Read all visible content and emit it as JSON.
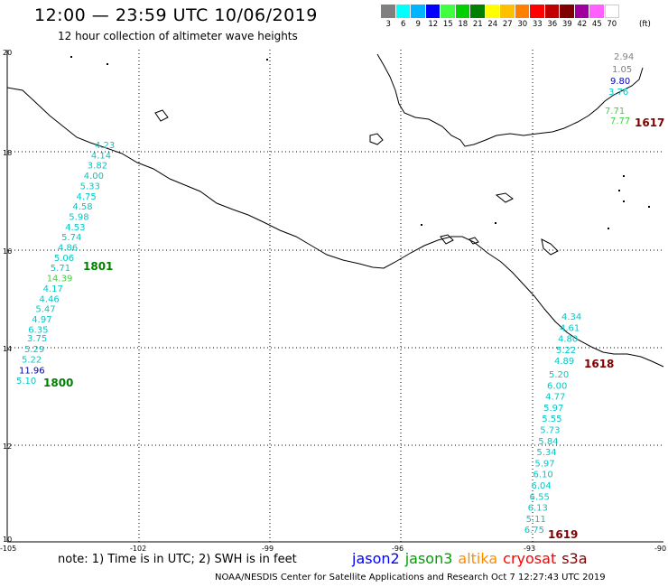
{
  "header": {
    "title": "12:00  —  23:59 UTC 10/06/2019",
    "subtitle": "12 hour collection of altimeter wave heights"
  },
  "color_scale": {
    "labels": [
      "3",
      "6",
      "9",
      "12",
      "15",
      "18",
      "21",
      "24",
      "27",
      "30",
      "33",
      "36",
      "39",
      "42",
      "45",
      "70"
    ],
    "unit": "(ft)",
    "colors": [
      "#808080",
      "#00ffff",
      "#00b4ff",
      "#0000ff",
      "#40ff40",
      "#00d000",
      "#008000",
      "#ffff00",
      "#ffc000",
      "#ff8000",
      "#ff0000",
      "#c00000",
      "#800000",
      "#a000a0",
      "#ff60ff",
      "#ffffff"
    ]
  },
  "map": {
    "lat_labels": [
      "20",
      "18",
      "16",
      "14",
      "12",
      "10"
    ],
    "lon_labels": [
      "-105",
      "-102",
      "-99",
      "-96",
      "-93",
      "-90"
    ]
  },
  "tracks": [
    {
      "time": "1801",
      "values": [
        "4.23",
        "4.14",
        "3.82",
        "4.00",
        "5.33",
        "4.75",
        "4.58",
        "5.98",
        "4.53",
        "5.74",
        "4.86",
        "5.06",
        "5.71",
        "14.39",
        "4.17",
        "4.46",
        "5.47",
        "4.97",
        "6.35"
      ],
      "colors": [
        "#00c8c8",
        "#00c8c8",
        "#00c8c8",
        "#00c8c8",
        "#00c8c8",
        "#00c8c8",
        "#00c8c8",
        "#00c8c8",
        "#00c8c8",
        "#00c8c8",
        "#00c8c8",
        "#00c8c8",
        "#00c8c8",
        "#40d040",
        "#00c8c8",
        "#00c8c8",
        "#00c8c8",
        "#00c8c8",
        "#00c8c8"
      ]
    },
    {
      "time": "1800",
      "values": [
        "3.75",
        "5.29",
        "5.22",
        "11.96",
        "5.10"
      ],
      "colors": [
        "#00c8c8",
        "#00c8c8",
        "#00c8c8",
        "#0000a0",
        "#00c8c8"
      ]
    },
    {
      "time": "1617",
      "values": [
        "2.94",
        "1.05",
        "9.80",
        "3.76",
        "7.71",
        "7.77"
      ],
      "colors": [
        "#808080",
        "#808080",
        "#0000c0",
        "#00c8c8",
        "#40d040",
        "#40d040"
      ]
    },
    {
      "time": "1618",
      "values": [
        "4.34",
        "4.61",
        "4.80",
        "5.22",
        "4.89"
      ],
      "colors": [
        "#00c8c8",
        "#00c8c8",
        "#00c8c8",
        "#00c8c8",
        "#00c8c8"
      ]
    },
    {
      "time": "1619",
      "values": [
        "5.20",
        "6.00",
        "4.77",
        "5.97",
        "5.55",
        "5.73",
        "5.84",
        "5.34",
        "5.97",
        "6.10",
        "6.04",
        "6.55",
        "6.13",
        "5.11",
        "6.75"
      ],
      "colors": [
        "#00c8c8",
        "#00c8c8",
        "#00c8c8",
        "#00c8c8",
        "#00c8c8",
        "#00c8c8",
        "#00c8c8",
        "#00c8c8",
        "#00c8c8",
        "#00c8c8",
        "#00c8c8",
        "#00c8c8",
        "#00c8c8",
        "#00c8c8",
        "#00c8c8"
      ]
    }
  ],
  "time_label_colors": {
    "1801": "#008000",
    "1800": "#008000",
    "1617": "#800000",
    "1618": "#800000",
    "1619": "#800000"
  },
  "note": "note:  1) Time is in UTC;  2) SWH is in feet",
  "satellites": [
    {
      "name": "jason2",
      "color": "#0000ff"
    },
    {
      "name": "jason3",
      "color": "#00a000"
    },
    {
      "name": "altika",
      "color": "#ff8c00"
    },
    {
      "name": "cryosat",
      "color": "#ff0000"
    },
    {
      "name": "s3a",
      "color": "#800000"
    }
  ],
  "footer": "NOAA/NESDIS Center for Satellite Applications and Research    Oct  7 12:27:43 UTC 2019"
}
